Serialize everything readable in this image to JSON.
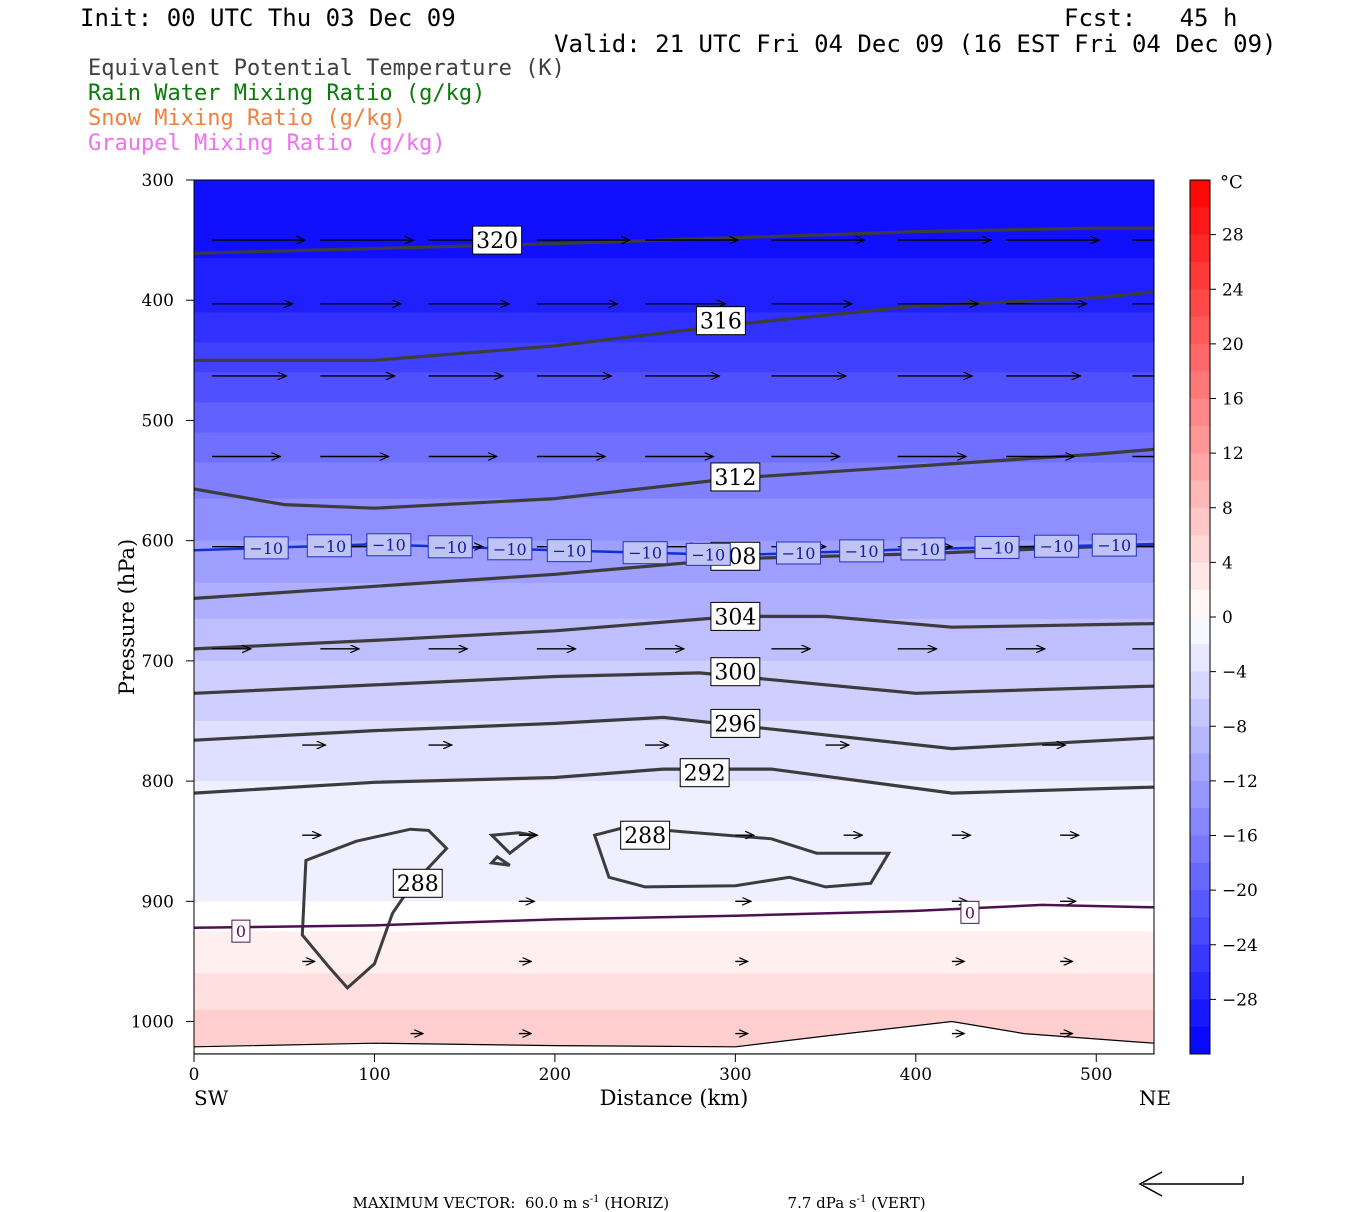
{
  "header": {
    "init": "Init: 00 UTC Thu 03 Dec 09",
    "fcst": "Fcst:   45 h",
    "valid": "Valid: 21 UTC Fri 04 Dec 09 (16 EST Fri 04 Dec 09)"
  },
  "legend": [
    {
      "label": "Equivalent Potential Temperature (K)",
      "color": "#404040"
    },
    {
      "label": "Rain Water Mixing Ratio (g/kg)",
      "color": "#0a7a0a"
    },
    {
      "label": "Snow Mixing Ratio (g/kg)",
      "color": "#f08040"
    },
    {
      "label": "Graupel Mixing Ratio (g/kg)",
      "color": "#f070f0"
    }
  ],
  "footer": {
    "max_vector_label": "MAXIMUM VECTOR:",
    "horiz_value": "60.0 m s",
    "horiz_unit": "(HORIZ)",
    "vert_value": "7.7 dPa s",
    "vert_unit": "(VERT)",
    "exponent": "-1"
  },
  "chart_data": {
    "type": "contour cross-section",
    "xlabel": "Distance (km)",
    "ylabel": "Pressure (hPa)",
    "xlim": [
      0,
      532
    ],
    "ylim": [
      1027,
      300
    ],
    "x_ticks": [
      0,
      100,
      200,
      300,
      400,
      500
    ],
    "y_ticks": [
      300,
      400,
      500,
      600,
      700,
      800,
      900,
      1000
    ],
    "x_end_labels": {
      "left": "SW",
      "right": "NE"
    },
    "temperature_colorbar": {
      "unit": "°C",
      "tick_labels": [
        "28",
        "24",
        "20",
        "16",
        "12",
        "8",
        "4",
        "0",
        "−4",
        "−8",
        "−12",
        "−16",
        "−20",
        "−24",
        "−28"
      ],
      "tick_values": [
        28,
        24,
        20,
        16,
        12,
        8,
        4,
        0,
        -4,
        -8,
        -12,
        -16,
        -20,
        -24,
        -28
      ],
      "range": [
        -32,
        32
      ],
      "step": 2,
      "cold_color": "#0000ff",
      "warm_color": "#ff0000",
      "neutral_color": "#ffffff"
    },
    "temperature_levels_at_pressure": [
      {
        "p": 300,
        "t": -31
      },
      {
        "p": 400,
        "t": -28
      },
      {
        "p": 450,
        "t": -24
      },
      {
        "p": 500,
        "t": -20
      },
      {
        "p": 550,
        "t": -16
      },
      {
        "p": 600,
        "t": -13
      },
      {
        "p": 650,
        "t": -10
      },
      {
        "p": 700,
        "t": -7
      },
      {
        "p": 750,
        "t": -5
      },
      {
        "p": 800,
        "t": -3
      },
      {
        "p": 860,
        "t": -2
      },
      {
        "p": 900,
        "t": -1
      },
      {
        "p": 925,
        "t": 1
      },
      {
        "p": 960,
        "t": 3
      },
      {
        "p": 990,
        "t": 5
      },
      {
        "p": 1015,
        "t": 6
      }
    ],
    "theta_e_contours": [
      {
        "level": 320,
        "label": "320",
        "label_at": [
          168,
          350
        ],
        "points": [
          [
            0,
            361
          ],
          [
            100,
            357
          ],
          [
            200,
            353
          ],
          [
            300,
            348
          ],
          [
            400,
            343
          ],
          [
            500,
            340
          ],
          [
            532,
            340
          ]
        ]
      },
      {
        "level": 316,
        "label": "316",
        "label_at": [
          292,
          417
        ],
        "points": [
          [
            0,
            450
          ],
          [
            100,
            450
          ],
          [
            200,
            438
          ],
          [
            300,
            420
          ],
          [
            400,
            405
          ],
          [
            500,
            398
          ],
          [
            532,
            393
          ]
        ]
      },
      {
        "level": 312,
        "label": "312",
        "label_at": [
          300,
          547
        ],
        "points": [
          [
            0,
            557
          ],
          [
            50,
            570
          ],
          [
            100,
            573
          ],
          [
            200,
            565
          ],
          [
            300,
            548
          ],
          [
            400,
            538
          ],
          [
            500,
            528
          ],
          [
            532,
            524
          ]
        ]
      },
      {
        "level": 308,
        "label": "308",
        "label_at": [
          300,
          613
        ],
        "points": [
          [
            0,
            648
          ],
          [
            100,
            638
          ],
          [
            200,
            628
          ],
          [
            300,
            615
          ],
          [
            400,
            611
          ],
          [
            500,
            605
          ],
          [
            532,
            603
          ]
        ]
      },
      {
        "level": 304,
        "label": "304",
        "label_at": [
          300,
          663
        ],
        "points": [
          [
            0,
            690
          ],
          [
            100,
            683
          ],
          [
            200,
            675
          ],
          [
            300,
            663
          ],
          [
            350,
            663
          ],
          [
            420,
            672
          ],
          [
            532,
            669
          ]
        ]
      },
      {
        "level": 300,
        "label": "300",
        "label_at": [
          300,
          709
        ],
        "points": [
          [
            0,
            727
          ],
          [
            100,
            720
          ],
          [
            200,
            713
          ],
          [
            280,
            710
          ],
          [
            400,
            727
          ],
          [
            532,
            721
          ]
        ]
      },
      {
        "level": 296,
        "label": "296",
        "label_at": [
          300,
          752
        ],
        "points": [
          [
            0,
            766
          ],
          [
            100,
            758
          ],
          [
            200,
            752
          ],
          [
            260,
            747
          ],
          [
            420,
            773
          ],
          [
            532,
            764
          ]
        ]
      },
      {
        "level": 292,
        "label": "292",
        "label_at": [
          283,
          793
        ],
        "points": [
          [
            0,
            810
          ],
          [
            100,
            801
          ],
          [
            200,
            797
          ],
          [
            260,
            790
          ],
          [
            320,
            790
          ],
          [
            420,
            810
          ],
          [
            532,
            805
          ]
        ]
      }
    ],
    "theta_e_closed_contours": [
      {
        "level": 288,
        "label": "288",
        "label_at": [
          124,
          885
        ],
        "points": [
          [
            62,
            866
          ],
          [
            90,
            850
          ],
          [
            120,
            840
          ],
          [
            130,
            841
          ],
          [
            140,
            856
          ],
          [
            120,
            888
          ],
          [
            110,
            910
          ],
          [
            100,
            952
          ],
          [
            85,
            972
          ],
          [
            75,
            955
          ],
          [
            60,
            928
          ],
          [
            62,
            866
          ]
        ]
      },
      {
        "level": 288,
        "label": "288",
        "label_at": [
          250,
          845
        ],
        "points": [
          [
            222,
            845
          ],
          [
            240,
            838
          ],
          [
            270,
            842
          ],
          [
            320,
            848
          ],
          [
            345,
            860
          ],
          [
            385,
            860
          ],
          [
            375,
            885
          ],
          [
            350,
            888
          ],
          [
            330,
            880
          ],
          [
            300,
            887
          ],
          [
            250,
            888
          ],
          [
            230,
            880
          ],
          [
            222,
            845
          ]
        ]
      },
      {
        "level": 288,
        "label": "",
        "label_at": null,
        "points": [
          [
            165,
            845
          ],
          [
            180,
            843
          ],
          [
            188,
            845
          ],
          [
            175,
            860
          ],
          [
            165,
            845
          ]
        ]
      },
      {
        "level": 288,
        "label": "",
        "label_at": null,
        "points": [
          [
            165,
            868
          ],
          [
            168,
            863
          ],
          [
            175,
            870
          ],
          [
            165,
            868
          ]
        ]
      }
    ],
    "isotherm_minus10": {
      "label": "−10",
      "pressure_points": [
        [
          0,
          608
        ],
        [
          100,
          603
        ],
        [
          200,
          608
        ],
        [
          300,
          612
        ],
        [
          400,
          607
        ],
        [
          532,
          603
        ]
      ],
      "label_x": [
        40,
        75,
        108,
        142,
        175,
        208,
        250,
        285,
        335,
        370,
        404,
        445,
        478,
        510
      ]
    },
    "isotherm_zero": {
      "label": "0",
      "pressure_points": [
        [
          0,
          922
        ],
        [
          100,
          920
        ],
        [
          200,
          915
        ],
        [
          300,
          912
        ],
        [
          400,
          908
        ],
        [
          470,
          903
        ],
        [
          532,
          905
        ]
      ],
      "label_x": [
        26,
        430
      ]
    },
    "surface_pressure": [
      [
        0,
        1021
      ],
      [
        100,
        1018
      ],
      [
        200,
        1020
      ],
      [
        300,
        1021
      ],
      [
        350,
        1012
      ],
      [
        420,
        1000
      ],
      [
        460,
        1010
      ],
      [
        532,
        1018
      ]
    ],
    "wind_arrows": [
      {
        "p": 350,
        "x": [
          10,
          70,
          130,
          190,
          250,
          320,
          390,
          450,
          520
        ],
        "u": 60
      },
      {
        "p": 403,
        "x": [
          10,
          70,
          130,
          190,
          250,
          320,
          390,
          450,
          520
        ],
        "u": 52
      },
      {
        "p": 463,
        "x": [
          10,
          70,
          130,
          190,
          250,
          320,
          390,
          450,
          520
        ],
        "u": 48
      },
      {
        "p": 530,
        "x": [
          10,
          70,
          130,
          190,
          250,
          320,
          390,
          450,
          520
        ],
        "u": 44
      },
      {
        "p": 605,
        "x": [
          10,
          70,
          130,
          190,
          250,
          320,
          390,
          450,
          520
        ],
        "u": 35
      },
      {
        "p": 690,
        "x": [
          10,
          70,
          130,
          190,
          250,
          320,
          390,
          450,
          520
        ],
        "u": 25
      },
      {
        "p": 770,
        "x": [
          60,
          130,
          250,
          350,
          470
        ],
        "u": 15
      },
      {
        "p": 845,
        "x": [
          60,
          180,
          300,
          360,
          420,
          480
        ],
        "u": 12
      },
      {
        "p": 900,
        "x": [
          180,
          300,
          420,
          480
        ],
        "u": 10
      },
      {
        "p": 950,
        "x": [
          60,
          180,
          300,
          420,
          480
        ],
        "u": 8
      },
      {
        "p": 1010,
        "x": [
          120,
          180,
          300,
          420,
          480
        ],
        "u": 8
      }
    ],
    "reference_vector_direction": "left"
  }
}
